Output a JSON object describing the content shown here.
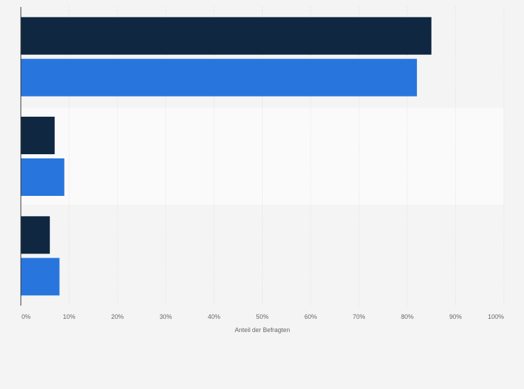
{
  "chart_data": {
    "type": "bar",
    "orientation": "horizontal",
    "categories": [
      "",
      "",
      ""
    ],
    "series": [
      {
        "values": [
          85,
          7,
          6
        ]
      },
      {
        "values": [
          82,
          9,
          8
        ]
      }
    ],
    "colors": {
      "series": [
        "#0f2741",
        "#2876dd"
      ],
      "band": "#fafafa",
      "background": "#f4f4f4",
      "grid": "#dcdcdc"
    },
    "xlabel": "Anteil der Befragten",
    "xlim": [
      0,
      100
    ],
    "xticks": [
      "0%",
      "10%",
      "20%",
      "30%",
      "40%",
      "50%",
      "60%",
      "70%",
      "80%",
      "90%",
      "100%"
    ],
    "grid": true,
    "legend": "none"
  }
}
